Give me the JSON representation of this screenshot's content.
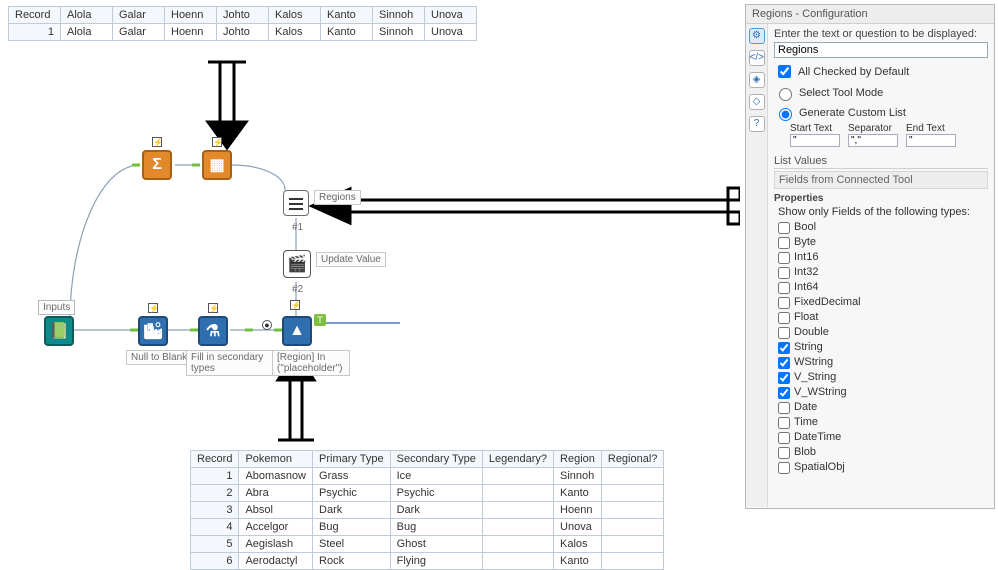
{
  "top_table": {
    "headers": [
      "Record",
      "Alola",
      "Galar",
      "Hoenn",
      "Johto",
      "Kalos",
      "Kanto",
      "Sinnoh",
      "Unova"
    ],
    "rows": [
      [
        "1",
        "Alola",
        "Galar",
        "Hoenn",
        "Johto",
        "Kalos",
        "Kanto",
        "Sinnoh",
        "Unova"
      ]
    ]
  },
  "bottom_table": {
    "headers": [
      "Record",
      "Pokemon",
      "Primary Type",
      "Secondary Type",
      "Legendary?",
      "Region",
      "Regional?"
    ],
    "rows": [
      [
        "1",
        "Abomasnow",
        "Grass",
        "Ice",
        "",
        "Sinnoh",
        ""
      ],
      [
        "2",
        "Abra",
        "Psychic",
        "Psychic",
        "",
        "Kanto",
        ""
      ],
      [
        "3",
        "Absol",
        "Dark",
        "Dark",
        "",
        "Hoenn",
        ""
      ],
      [
        "4",
        "Accelgor",
        "Bug",
        "Bug",
        "",
        "Unova",
        ""
      ],
      [
        "5",
        "Aegislash",
        "Steel",
        "Ghost",
        "",
        "Kalos",
        ""
      ],
      [
        "6",
        "Aerodactyl",
        "Rock",
        "Flying",
        "",
        "Kanto",
        ""
      ]
    ]
  },
  "nodes": {
    "inputs_label": "Inputs",
    "regions_label": "Regions",
    "update_label": "Update Value",
    "null_label": "Null to Blank",
    "fill_label": "Fill in secondary types",
    "region_in_label": "[Region] In (\"placeholder\")",
    "hash1": "#1",
    "hash2": "#2"
  },
  "config": {
    "title": "Regions - Configuration",
    "prompt_label": "Enter the text or question to be displayed:",
    "prompt_value": "Regions",
    "all_checked_label": "All Checked by Default",
    "select_mode_label": "Select Tool Mode",
    "gen_list_label": "Generate Custom List",
    "start_text_label": "Start Text",
    "separator_label": "Separator",
    "end_text_label": "End Text",
    "start_text_value": "\"",
    "separator_value": "\",\"",
    "end_text_value": "\"",
    "list_values_label": "List Values",
    "fields_connected_label": "Fields from Connected Tool",
    "properties_label": "Properties",
    "show_only_label": "Show only Fields of the following types:",
    "types": [
      {
        "name": "Bool",
        "checked": false
      },
      {
        "name": "Byte",
        "checked": false
      },
      {
        "name": "Int16",
        "checked": false
      },
      {
        "name": "Int32",
        "checked": false
      },
      {
        "name": "Int64",
        "checked": false
      },
      {
        "name": "FixedDecimal",
        "checked": false
      },
      {
        "name": "Float",
        "checked": false
      },
      {
        "name": "Double",
        "checked": false
      },
      {
        "name": "String",
        "checked": true
      },
      {
        "name": "WString",
        "checked": true
      },
      {
        "name": "V_String",
        "checked": true
      },
      {
        "name": "V_WString",
        "checked": true
      },
      {
        "name": "Date",
        "checked": false
      },
      {
        "name": "Time",
        "checked": false
      },
      {
        "name": "DateTime",
        "checked": false
      },
      {
        "name": "Blob",
        "checked": false
      },
      {
        "name": "SpatialObj",
        "checked": false
      }
    ]
  },
  "colors": {
    "canvas_line": "#8aa0b8",
    "arrow": "#000000"
  }
}
